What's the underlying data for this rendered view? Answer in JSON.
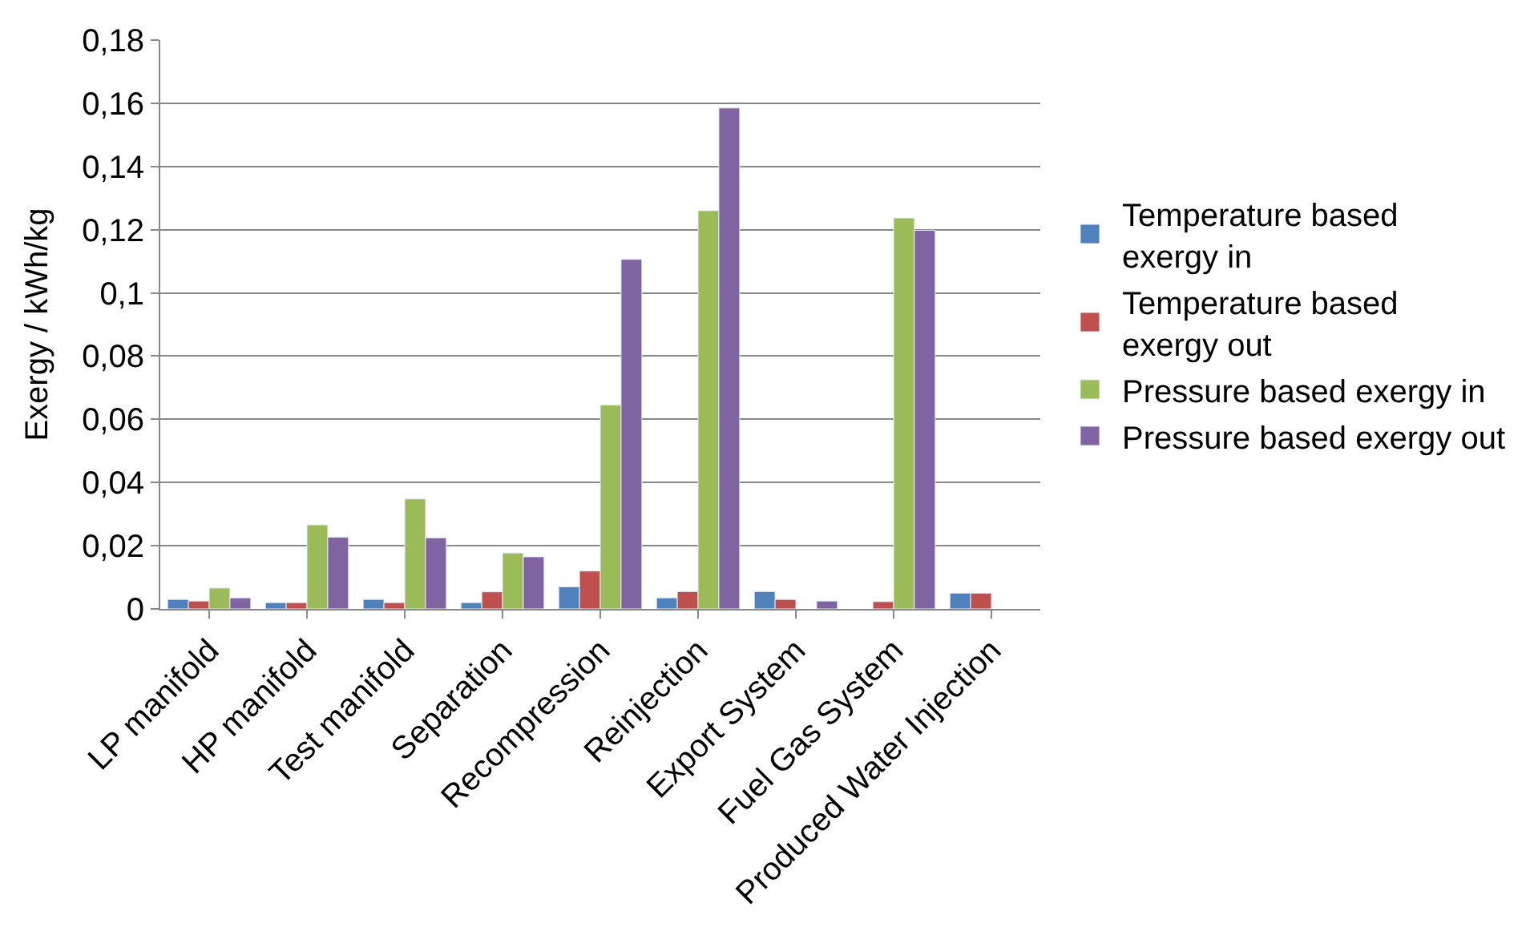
{
  "chart_data": {
    "type": "bar",
    "ylabel": "Exergy / kWh/kg",
    "categories": [
      "LP manifold",
      "HP manifold",
      "Test manifold",
      "Separation",
      "Recompression",
      "Reinjection",
      "Export System",
      "Fuel Gas System",
      "Produced Water Injection"
    ],
    "series": [
      {
        "name": "Temperature based exergy in",
        "color": "#4f81bd",
        "values": [
          0.003,
          0.002,
          0.003,
          0.002,
          0.007,
          0.0035,
          0.0055,
          null,
          0.005
        ]
      },
      {
        "name": "Temperature based exergy out",
        "color": "#c0504d",
        "values": [
          0.0025,
          0.002,
          0.002,
          0.0054,
          0.012,
          0.0055,
          0.003,
          0.0023,
          0.005
        ]
      },
      {
        "name": "Pressure based exergy in",
        "color": "#9bbb59",
        "values": [
          0.0066,
          0.0266,
          0.0348,
          0.0177,
          0.0645,
          0.126,
          null,
          0.1237,
          null
        ]
      },
      {
        "name": "Pressure based exergy out",
        "color": "#8064a2",
        "values": [
          0.0035,
          0.0227,
          0.0225,
          0.0165,
          0.1106,
          0.1585,
          0.0025,
          0.1198,
          null
        ]
      }
    ],
    "ylim": [
      0,
      0.18
    ],
    "yticks": [
      {
        "value": 0,
        "label": "0"
      },
      {
        "value": 0.02,
        "label": "0,02"
      },
      {
        "value": 0.04,
        "label": "0,04"
      },
      {
        "value": 0.06,
        "label": "0,06"
      },
      {
        "value": 0.08,
        "label": "0,08"
      },
      {
        "value": 0.1,
        "label": "0,1"
      },
      {
        "value": 0.12,
        "label": "0,12"
      },
      {
        "value": 0.14,
        "label": "0,14"
      },
      {
        "value": 0.16,
        "label": "0,16"
      },
      {
        "value": 0.18,
        "label": "0,18"
      }
    ],
    "grid": "y",
    "legend": "right"
  }
}
